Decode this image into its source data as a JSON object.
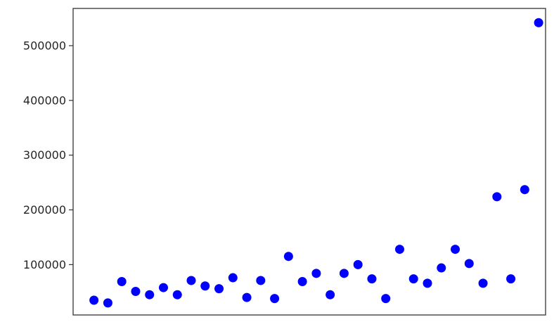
{
  "chart_data": {
    "type": "scatter",
    "title": "",
    "xlabel": "",
    "ylabel": "",
    "grid": false,
    "marker_color": "#0000ff",
    "y_ticks": [
      100000,
      200000,
      300000,
      400000,
      500000
    ],
    "y_tick_labels": [
      "100000",
      "200000",
      "300000",
      "400000",
      "500000"
    ],
    "ylim": [
      8000,
      568000
    ],
    "xlim": [
      -1.5,
      32.5
    ],
    "points": [
      {
        "x": 0,
        "y": 35000
      },
      {
        "x": 1,
        "y": 30000
      },
      {
        "x": 2,
        "y": 69000
      },
      {
        "x": 3,
        "y": 51000
      },
      {
        "x": 4,
        "y": 45000
      },
      {
        "x": 5,
        "y": 58000
      },
      {
        "x": 6,
        "y": 45000
      },
      {
        "x": 7,
        "y": 71000
      },
      {
        "x": 8,
        "y": 61000
      },
      {
        "x": 9,
        "y": 56000
      },
      {
        "x": 10,
        "y": 76000
      },
      {
        "x": 11,
        "y": 40000
      },
      {
        "x": 12,
        "y": 71000
      },
      {
        "x": 13,
        "y": 38000
      },
      {
        "x": 14,
        "y": 115000
      },
      {
        "x": 15,
        "y": 69000
      },
      {
        "x": 16,
        "y": 84000
      },
      {
        "x": 17,
        "y": 45000
      },
      {
        "x": 18,
        "y": 84000
      },
      {
        "x": 19,
        "y": 100000
      },
      {
        "x": 20,
        "y": 74000
      },
      {
        "x": 21,
        "y": 38000
      },
      {
        "x": 22,
        "y": 128000
      },
      {
        "x": 23,
        "y": 74000
      },
      {
        "x": 24,
        "y": 66000
      },
      {
        "x": 25,
        "y": 94000
      },
      {
        "x": 26,
        "y": 128000
      },
      {
        "x": 27,
        "y": 102000
      },
      {
        "x": 28,
        "y": 66000
      },
      {
        "x": 29,
        "y": 224000
      },
      {
        "x": 30,
        "y": 74000
      },
      {
        "x": 31,
        "y": 237000
      },
      {
        "x": 32,
        "y": 542000
      }
    ]
  }
}
